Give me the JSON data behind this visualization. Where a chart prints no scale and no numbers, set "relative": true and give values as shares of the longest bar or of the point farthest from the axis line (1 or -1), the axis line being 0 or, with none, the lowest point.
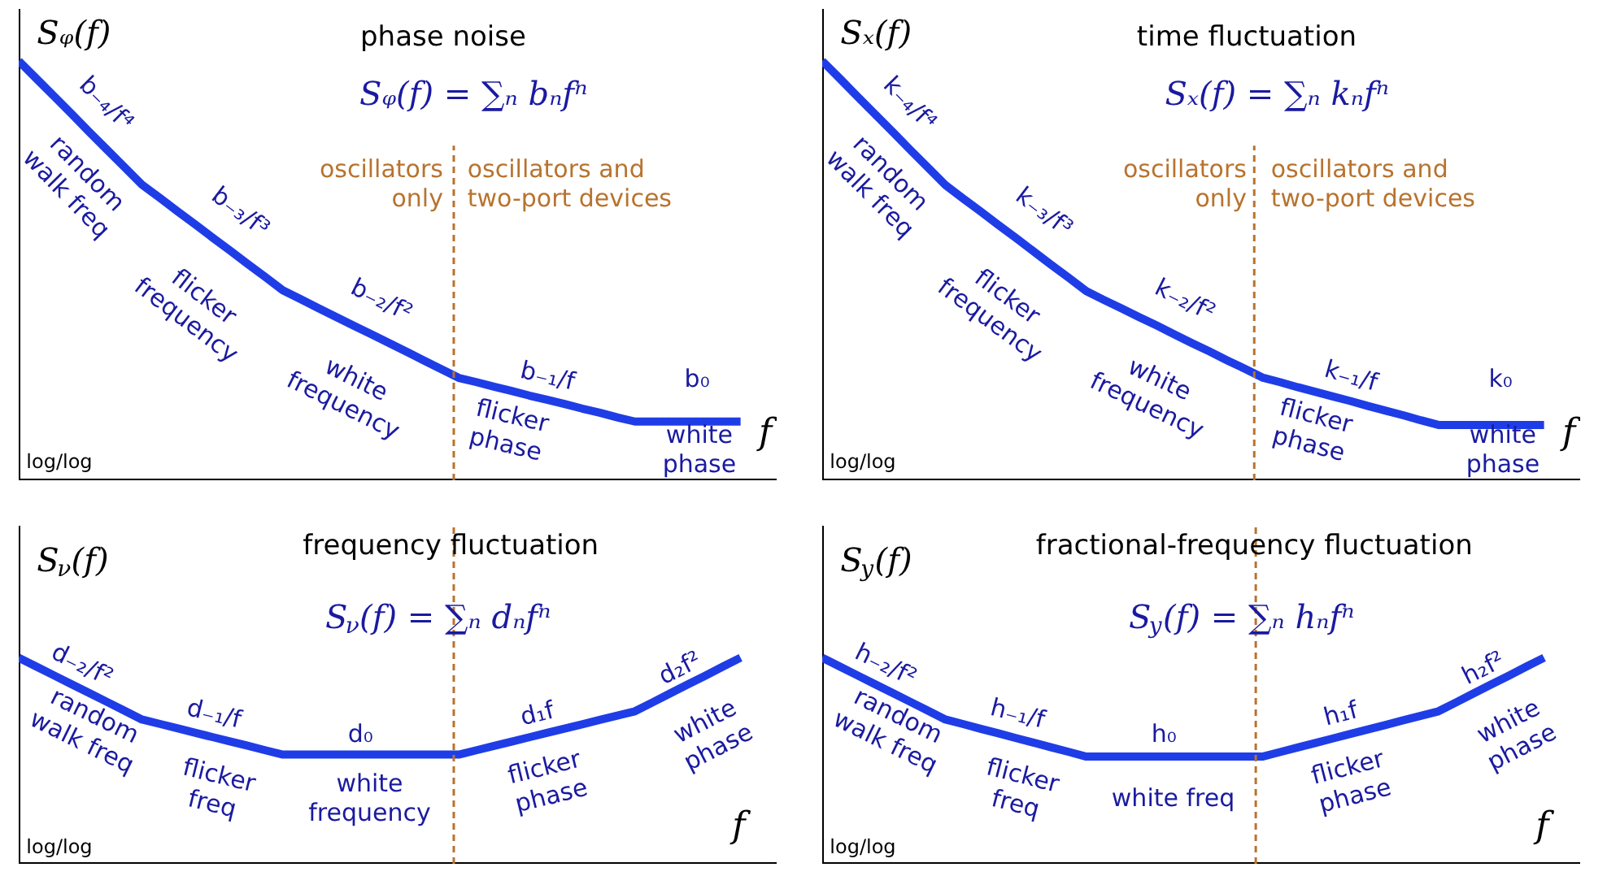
{
  "chart_data": [
    {
      "type": "line",
      "title": "phase noise",
      "ylabel": "Sᵩ(f)",
      "xlabel": "f",
      "relative": true,
      "color": "#1f3de6",
      "line_style": "solid",
      "categories": [
        null,
        null,
        null,
        null,
        null,
        null,
        null,
        null,
        null,
        null,
        null,
        null,
        null,
        null,
        null,
        null,
        null,
        null,
        null,
        null,
        null,
        null,
        null,
        null,
        null,
        null,
        null,
        null,
        null,
        null,
        null,
        null,
        null,
        null,
        null,
        null,
        null,
        null,
        null,
        null,
        null,
        null
      ],
      "values": [
        1,
        0.958,
        0.916,
        0.874,
        0.831,
        0.789,
        0.747,
        0.705,
        0.674,
        0.642,
        0.611,
        0.579,
        0.548,
        0.516,
        0.485,
        0.453,
        0.432,
        0.411,
        0.39,
        0.369,
        0.349,
        0.328,
        0.307,
        0.286,
        0.265,
        0.244,
        0.234,
        0.223,
        0.213,
        0.202,
        0.192,
        0.182,
        0.171,
        0.161,
        0.15,
        0.14,
        0.14,
        0.14,
        0.14,
        0.14,
        0.14,
        0.14
      ],
      "annotations": [
        "Sᵩ(f) = ∑ₙ bₙfⁿ",
        "oscillators\nonly",
        "oscillators and\ntwo-port devices",
        "log/log",
        "b₋₄/f⁴",
        "random\nwalk freq",
        "b₋₃/f³",
        "flicker\nfrequency",
        "b₋₂/f²",
        "white\nfrequency",
        "b₋₁/f",
        "flicker\nphase",
        "b₀",
        "white\nphase"
      ]
    },
    {
      "type": "line",
      "title": "time fluctuation",
      "ylabel": "Sₓ(f)",
      "xlabel": "f",
      "relative": true,
      "color": "#1f3de6",
      "line_style": "solid",
      "categories": [
        null,
        null,
        null,
        null,
        null,
        null,
        null,
        null,
        null,
        null,
        null,
        null,
        null,
        null,
        null,
        null,
        null,
        null,
        null,
        null,
        null,
        null,
        null,
        null,
        null,
        null,
        null,
        null,
        null,
        null,
        null,
        null,
        null,
        null,
        null,
        null,
        null,
        null,
        null,
        null,
        null,
        null
      ],
      "values": [
        1,
        0.958,
        0.915,
        0.873,
        0.831,
        0.788,
        0.746,
        0.704,
        0.672,
        0.641,
        0.609,
        0.578,
        0.546,
        0.514,
        0.483,
        0.451,
        0.43,
        0.41,
        0.389,
        0.369,
        0.348,
        0.327,
        0.307,
        0.286,
        0.266,
        0.245,
        0.234,
        0.222,
        0.211,
        0.2,
        0.189,
        0.177,
        0.166,
        0.155,
        0.143,
        0.132,
        0.132,
        0.132,
        0.132,
        0.132,
        0.132,
        0.132
      ],
      "annotations": [
        "Sₓ(f) = ∑ₙ kₙfⁿ",
        "oscillators\nonly",
        "oscillators and\ntwo-port devices",
        "log/log",
        "k₋₄/f⁴",
        "random\nwalk freq",
        "k₋₃/f³",
        "flicker\nfrequency",
        "k₋₂/f²",
        "white\nfrequency",
        "k₋₁/f",
        "flicker\nphase",
        "k₀",
        "white\nphase"
      ]
    },
    {
      "type": "line",
      "title": "frequency fluctuation",
      "ylabel": "S$_{ν}$(f)",
      "xlabel": "f",
      "relative": true,
      "color": "#1f3de6",
      "line_style": "solid",
      "categories": [
        null,
        null,
        null,
        null,
        null,
        null,
        null,
        null,
        null,
        null,
        null,
        null,
        null,
        null,
        null,
        null,
        null,
        null,
        null,
        null,
        null,
        null,
        null,
        null,
        null,
        null,
        null,
        null,
        null,
        null,
        null,
        null,
        null,
        null,
        null,
        null,
        null,
        null,
        null,
        null,
        null,
        null
      ],
      "values": [
        1,
        0.957,
        0.914,
        0.871,
        0.829,
        0.786,
        0.743,
        0.7,
        0.679,
        0.658,
        0.636,
        0.615,
        0.594,
        0.573,
        0.551,
        0.53,
        0.53,
        0.53,
        0.53,
        0.53,
        0.53,
        0.53,
        0.53,
        0.53,
        0.53,
        0.53,
        0.551,
        0.572,
        0.593,
        0.614,
        0.635,
        0.656,
        0.677,
        0.698,
        0.719,
        0.74,
        0.783,
        0.827,
        0.87,
        0.913,
        0.957,
        1
      ],
      "annotations": [
        "S$_{ν}$(f) = ∑ₙ dₙfⁿ",
        "log/log",
        "d₋₂/f²",
        "random\nwalk freq",
        "d₋₁/f",
        "flicker\nfreq",
        "d₀",
        "white\nfrequency",
        "d₁f",
        "flicker\nphase",
        "d₂f²",
        "white\nphase"
      ]
    },
    {
      "type": "line",
      "title": "fractional-frequency fluctuation",
      "ylabel": "S$_{y}$(f)",
      "xlabel": "f",
      "relative": true,
      "color": "#1f3de6",
      "line_style": "solid",
      "categories": [
        null,
        null,
        null,
        null,
        null,
        null,
        null,
        null,
        null,
        null,
        null,
        null,
        null,
        null,
        null,
        null,
        null,
        null,
        null,
        null,
        null,
        null,
        null,
        null,
        null,
        null,
        null,
        null,
        null,
        null,
        null,
        null,
        null,
        null,
        null,
        null,
        null,
        null,
        null,
        null,
        null,
        null
      ],
      "values": [
        1,
        0.957,
        0.914,
        0.871,
        0.829,
        0.786,
        0.743,
        0.7,
        0.678,
        0.655,
        0.633,
        0.61,
        0.588,
        0.565,
        0.543,
        0.52,
        0.52,
        0.52,
        0.52,
        0.52,
        0.52,
        0.52,
        0.52,
        0.52,
        0.52,
        0.52,
        0.542,
        0.564,
        0.586,
        0.608,
        0.63,
        0.652,
        0.674,
        0.696,
        0.718,
        0.74,
        0.783,
        0.827,
        0.87,
        0.913,
        0.957,
        1
      ],
      "annotations": [
        "S$_{y}$(f) = ∑ₙ hₙfⁿ",
        "log/log",
        "h₋₂/f²",
        "random\nwalk freq",
        "h₋₁/f",
        "flicker\nfreq",
        "h₀",
        "white freq",
        "h₁f",
        "flicker\nphase",
        "h₂f²",
        "white\nphase"
      ]
    }
  ]
}
